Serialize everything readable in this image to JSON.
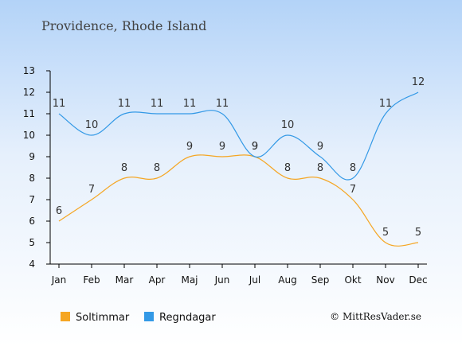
{
  "chart_data": {
    "type": "line",
    "title": "Providence, Rhode Island",
    "categories": [
      "Jan",
      "Feb",
      "Mar",
      "Apr",
      "Maj",
      "Jun",
      "Jul",
      "Aug",
      "Sep",
      "Okt",
      "Nov",
      "Dec"
    ],
    "series": [
      {
        "name": "Soltimmar",
        "color": "#f5a623",
        "values": [
          6,
          7,
          8,
          8,
          9,
          9,
          9,
          8,
          8,
          7,
          5,
          5
        ]
      },
      {
        "name": "Regndagar",
        "color": "#3399e6",
        "values": [
          11,
          10,
          11,
          11,
          11,
          11,
          9,
          10,
          9,
          8,
          11,
          12
        ]
      }
    ],
    "ylim": [
      4,
      13
    ],
    "yticks": [
      4,
      5,
      6,
      7,
      8,
      9,
      10,
      11,
      12,
      13
    ],
    "grid": false,
    "legend_position": "bottom-left"
  },
  "copyright": "© MittResVader.se"
}
